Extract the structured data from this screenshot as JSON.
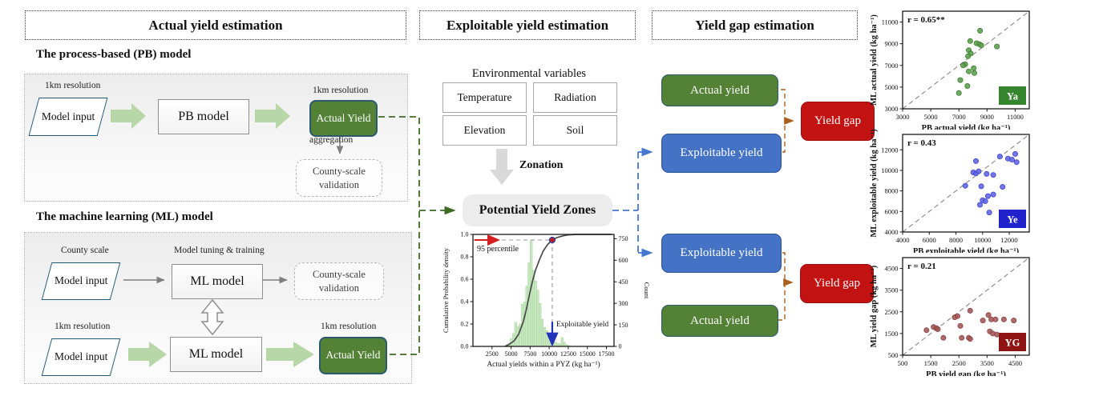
{
  "flow": {
    "headers": {
      "actual": "Actual yield estimation",
      "exploitable": "Exploitable yield estimation",
      "gap": "Yield gap estimation"
    },
    "pb": {
      "title": "The process-based (PB) model",
      "input_label": "1km resolution",
      "input": "Model input",
      "model": "PB model",
      "output_label": "1km resolution",
      "output": "Actual Yield",
      "aggregation_label": "aggregation",
      "validation": "County-scale validation"
    },
    "ml": {
      "title": "The machine learning (ML) model",
      "county_input_label": "County scale",
      "county_input": "Model input",
      "tuning_label": "Model tuning & training",
      "county_model": "ML model",
      "county_validation": "County-scale validation",
      "km_input_label": "1km resolution",
      "km_input": "Model input",
      "km_model": "ML model",
      "output_label": "1km resolution",
      "output": "Actual Yield"
    },
    "env": {
      "title": "Environmental variables",
      "vars": [
        "Temperature",
        "Radiation",
        "Elevation",
        "Soil"
      ],
      "zonation": "Zonation",
      "pyz": "Potential Yield Zones"
    },
    "gap": {
      "g1_actual": "Actual yield",
      "g1_exploitable": "Exploitable yield",
      "g1_gap": "Yield gap",
      "g2_exploitable": "Exploitable yield",
      "g2_actual": "Actual yield",
      "g2_gap": "Yield gap"
    }
  },
  "colors": {
    "actual_green": "#538135",
    "exploitable_blue": "#4472c4",
    "gap_red": "#c31212",
    "connector_green": "#3f6b25",
    "connector_blue": "#4577cc",
    "connector_brown": "#a9601e",
    "block_arrow_green": "#b7d7a8",
    "block_arrow_gray": "#d9d9d9",
    "hist_bar_green": "#bce3b4"
  },
  "chart_data": [
    {
      "id": "pyz_distribution",
      "type": "histogram+cdf",
      "xlabel": "Actual yields within a PYZ (kg ha⁻¹)",
      "ylabel_left": "Cumulative Probability density",
      "ylabel_right": "Count",
      "xlim": [
        0,
        18500
      ],
      "x_ticks": [
        2500,
        5000,
        7500,
        10000,
        12500,
        15000,
        17500
      ],
      "ylim_left": [
        0,
        1.0
      ],
      "left_ticks": [
        0.0,
        0.2,
        0.4,
        0.6,
        0.8,
        1.0
      ],
      "ylim_right": [
        0,
        780
      ],
      "right_ticks": [
        0,
        150,
        300,
        450,
        600,
        750
      ],
      "bins_start": 4300,
      "bin_width": 290,
      "counts": [
        12,
        25,
        55,
        90,
        168,
        140,
        155,
        295,
        310,
        420,
        585,
        740,
        530,
        455,
        392,
        300,
        190,
        132,
        110,
        82,
        60,
        42,
        30,
        22,
        18,
        62,
        30,
        12,
        6
      ],
      "cdf": [
        [
          4200,
          0
        ],
        [
          4800,
          0.02
        ],
        [
          5400,
          0.05
        ],
        [
          6000,
          0.11
        ],
        [
          6600,
          0.22
        ],
        [
          7000,
          0.33
        ],
        [
          7400,
          0.46
        ],
        [
          7800,
          0.58
        ],
        [
          8200,
          0.68
        ],
        [
          8700,
          0.77
        ],
        [
          9200,
          0.85
        ],
        [
          9800,
          0.91
        ],
        [
          10400,
          0.95
        ],
        [
          11000,
          0.971
        ],
        [
          11700,
          0.985
        ],
        [
          12500,
          0.996
        ],
        [
          13500,
          1.0
        ],
        [
          18200,
          1.0
        ]
      ],
      "annotations": {
        "percentile_label": "95 percentile",
        "exploitable_label": "Exploitable yield",
        "threshold_x": 10400,
        "threshold_p": 0.95
      }
    },
    {
      "id": "ya",
      "type": "scatter",
      "r_label": "r = 0.65**",
      "badge": "Ya",
      "xlabel": "PB actual yield (kg ha⁻¹)",
      "ylabel": "ML actual yield (kg ha⁻¹)",
      "lim": [
        3000,
        12000
      ],
      "ticks": [
        3000,
        5000,
        7000,
        9000,
        11000
      ],
      "point_color": "#5a9e4b",
      "point_edge": "#3e7d33",
      "badge_color": "#35862f",
      "points": [
        [
          8500,
          10200
        ],
        [
          7800,
          9250
        ],
        [
          8250,
          9050
        ],
        [
          8450,
          8950
        ],
        [
          8600,
          8850
        ],
        [
          9700,
          8750
        ],
        [
          7700,
          8400
        ],
        [
          7850,
          8100
        ],
        [
          7650,
          7850
        ],
        [
          7450,
          7100
        ],
        [
          7300,
          7000
        ],
        [
          8050,
          6750
        ],
        [
          7700,
          6450
        ],
        [
          8100,
          6300
        ],
        [
          7100,
          5650
        ],
        [
          7600,
          5100
        ],
        [
          7000,
          4450
        ]
      ]
    },
    {
      "id": "ye",
      "type": "scatter",
      "r_label": "r = 0.43",
      "badge": "Ye",
      "xlabel": "PB exploitable yield (kg ha⁻¹)",
      "ylabel": "ML exploitable yield (kg ha⁻¹)",
      "lim": [
        4000,
        13500
      ],
      "ticks": [
        4000,
        6000,
        8000,
        10000,
        12000
      ],
      "point_color": "#5f63e2",
      "point_edge": "#4247c9",
      "badge_color": "#2222cc",
      "points": [
        [
          9500,
          10900
        ],
        [
          11300,
          11350
        ],
        [
          11900,
          11150
        ],
        [
          12200,
          11050
        ],
        [
          12450,
          11600
        ],
        [
          12550,
          10800
        ],
        [
          9300,
          9800
        ],
        [
          9500,
          9700
        ],
        [
          9700,
          9900
        ],
        [
          10300,
          9650
        ],
        [
          10800,
          9550
        ],
        [
          8700,
          8500
        ],
        [
          9900,
          8450
        ],
        [
          11500,
          8400
        ],
        [
          10400,
          7500
        ],
        [
          10800,
          7650
        ],
        [
          10000,
          7100
        ],
        [
          10200,
          7000
        ],
        [
          9800,
          6650
        ],
        [
          10500,
          5900
        ]
      ]
    },
    {
      "id": "yg",
      "type": "scatter",
      "r_label": "r = 0.21",
      "badge": "YG",
      "xlabel": "PB yield gap (kg ha⁻¹)",
      "ylabel": "ML yield gap (kg ha⁻¹)",
      "lim": [
        500,
        5000
      ],
      "ticks": [
        500,
        1500,
        2500,
        3500,
        4500
      ],
      "point_color": "#a05555",
      "point_edge": "#8f4444",
      "badge_color": "#8e1414",
      "points": [
        [
          1350,
          1650
        ],
        [
          1600,
          1800
        ],
        [
          1700,
          1750
        ],
        [
          1750,
          1700
        ],
        [
          1950,
          1300
        ],
        [
          2350,
          2250
        ],
        [
          2450,
          2300
        ],
        [
          2550,
          1850
        ],
        [
          2600,
          1300
        ],
        [
          2850,
          1300
        ],
        [
          2900,
          1250
        ],
        [
          2900,
          2550
        ],
        [
          3350,
          2100
        ],
        [
          3550,
          2350
        ],
        [
          3600,
          1600
        ],
        [
          3700,
          1500
        ],
        [
          3850,
          1450
        ],
        [
          3650,
          2150
        ],
        [
          3800,
          2150
        ],
        [
          4100,
          2150
        ],
        [
          4450,
          2100
        ]
      ]
    }
  ]
}
